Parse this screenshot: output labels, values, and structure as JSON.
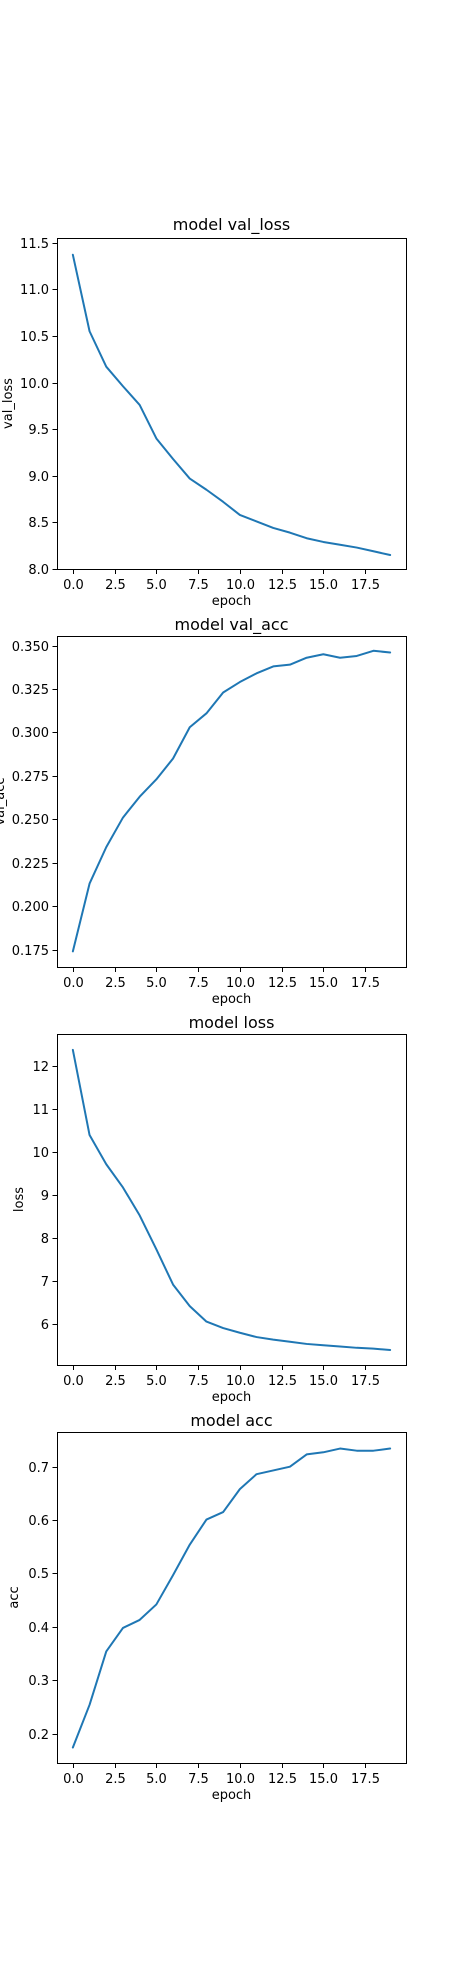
{
  "colors": {
    "series": "#1f77b4",
    "axes": "#000000",
    "background": "#ffffff"
  },
  "chart_data": [
    {
      "type": "line",
      "title": "model val_loss",
      "xlabel": "epoch",
      "ylabel": "val_loss",
      "xlim": [
        -0.95,
        19.95
      ],
      "ylim": [
        8.0,
        11.55
      ],
      "xticks": [
        0.0,
        2.5,
        5.0,
        7.5,
        10.0,
        12.5,
        15.0,
        17.5
      ],
      "xtick_labels": [
        "0.0",
        "2.5",
        "5.0",
        "7.5",
        "10.0",
        "12.5",
        "15.0",
        "17.5"
      ],
      "yticks": [
        8.0,
        8.5,
        9.0,
        9.5,
        10.0,
        10.5,
        11.0,
        11.5
      ],
      "ytick_labels": [
        "8.0",
        "8.5",
        "9.0",
        "9.5",
        "10.0",
        "10.5",
        "11.0",
        "11.5"
      ],
      "grid": false,
      "legend": "none",
      "x": [
        0,
        1,
        2,
        3,
        4,
        5,
        6,
        7,
        8,
        9,
        10,
        11,
        12,
        13,
        14,
        15,
        16,
        17,
        18,
        19
      ],
      "series": [
        {
          "values": [
            11.37,
            10.55,
            10.17,
            9.96,
            9.76,
            9.4,
            9.18,
            8.97,
            8.85,
            8.72,
            8.58,
            8.51,
            8.44,
            8.39,
            8.33,
            8.29,
            8.26,
            8.23,
            8.19,
            8.15
          ]
        }
      ]
    },
    {
      "type": "line",
      "title": "model val_acc",
      "xlabel": "epoch",
      "ylabel": "val_acc",
      "xlim": [
        -0.95,
        19.95
      ],
      "ylim": [
        0.165,
        0.3555
      ],
      "xticks": [
        0.0,
        2.5,
        5.0,
        7.5,
        10.0,
        12.5,
        15.0,
        17.5
      ],
      "xtick_labels": [
        "0.0",
        "2.5",
        "5.0",
        "7.5",
        "10.0",
        "12.5",
        "15.0",
        "17.5"
      ],
      "yticks": [
        0.175,
        0.2,
        0.225,
        0.25,
        0.275,
        0.3,
        0.325,
        0.35
      ],
      "ytick_labels": [
        "0.175",
        "0.200",
        "0.225",
        "0.250",
        "0.275",
        "0.300",
        "0.325",
        "0.350"
      ],
      "grid": false,
      "legend": "none",
      "x": [
        0,
        1,
        2,
        3,
        4,
        5,
        6,
        7,
        8,
        9,
        10,
        11,
        12,
        13,
        14,
        15,
        16,
        17,
        18,
        19
      ],
      "series": [
        {
          "values": [
            0.174,
            0.213,
            0.234,
            0.251,
            0.263,
            0.273,
            0.285,
            0.303,
            0.311,
            0.323,
            0.329,
            0.334,
            0.338,
            0.339,
            0.343,
            0.345,
            0.343,
            0.344,
            0.347,
            0.346
          ]
        }
      ]
    },
    {
      "type": "line",
      "title": "model loss",
      "xlabel": "epoch",
      "ylabel": "loss",
      "xlim": [
        -0.95,
        19.95
      ],
      "ylim": [
        5.05,
        12.75
      ],
      "xticks": [
        0.0,
        2.5,
        5.0,
        7.5,
        10.0,
        12.5,
        15.0,
        17.5
      ],
      "xtick_labels": [
        "0.0",
        "2.5",
        "5.0",
        "7.5",
        "10.0",
        "12.5",
        "15.0",
        "17.5"
      ],
      "yticks": [
        6,
        7,
        8,
        9,
        10,
        11,
        12
      ],
      "ytick_labels": [
        "6",
        "7",
        "8",
        "9",
        "10",
        "11",
        "12"
      ],
      "grid": false,
      "legend": "none",
      "x": [
        0,
        1,
        2,
        3,
        4,
        5,
        6,
        7,
        8,
        9,
        10,
        11,
        12,
        13,
        14,
        15,
        16,
        17,
        18,
        19
      ],
      "series": [
        {
          "values": [
            12.38,
            10.4,
            9.72,
            9.18,
            8.53,
            7.74,
            6.92,
            6.42,
            6.06,
            5.91,
            5.8,
            5.7,
            5.64,
            5.59,
            5.54,
            5.51,
            5.48,
            5.45,
            5.43,
            5.4
          ]
        }
      ]
    },
    {
      "type": "line",
      "title": "model acc",
      "xlabel": "epoch",
      "ylabel": "acc",
      "xlim": [
        -0.95,
        19.95
      ],
      "ylim": [
        0.145,
        0.765
      ],
      "xticks": [
        0.0,
        2.5,
        5.0,
        7.5,
        10.0,
        12.5,
        15.0,
        17.5
      ],
      "xtick_labels": [
        "0.0",
        "2.5",
        "5.0",
        "7.5",
        "10.0",
        "12.5",
        "15.0",
        "17.5"
      ],
      "yticks": [
        0.2,
        0.3,
        0.4,
        0.5,
        0.6,
        0.7
      ],
      "ytick_labels": [
        "0.2",
        "0.3",
        "0.4",
        "0.5",
        "0.6",
        "0.7"
      ],
      "grid": false,
      "legend": "none",
      "x": [
        0,
        1,
        2,
        3,
        4,
        5,
        6,
        7,
        8,
        9,
        10,
        11,
        12,
        13,
        14,
        15,
        16,
        17,
        18,
        19
      ],
      "series": [
        {
          "values": [
            0.174,
            0.254,
            0.354,
            0.398,
            0.413,
            0.442,
            0.497,
            0.554,
            0.601,
            0.615,
            0.658,
            0.686,
            0.693,
            0.7,
            0.723,
            0.727,
            0.734,
            0.73,
            0.73,
            0.734
          ]
        }
      ]
    }
  ]
}
